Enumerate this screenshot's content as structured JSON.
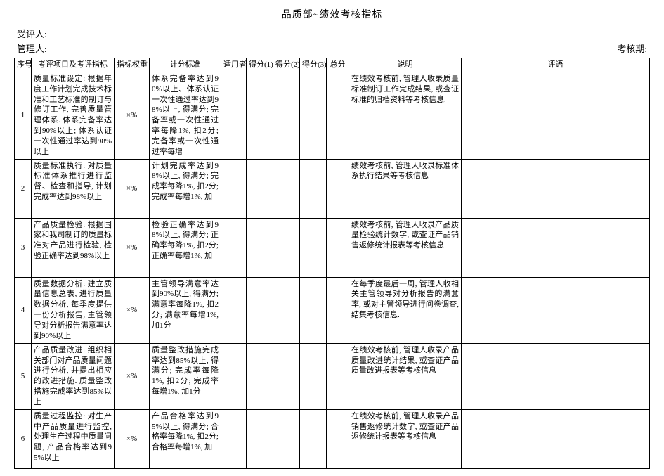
{
  "title": "品质部~绩效考核指标",
  "labels": {
    "reviewee": "受评人:",
    "manager": "管理人:",
    "period": "考核期:"
  },
  "columns": {
    "seq": "序号",
    "item": "考评项目及考评指标",
    "weight": "指标权重",
    "standard": "计分标准",
    "applicable": "适用者",
    "score1": "得分(1)",
    "score2": "得分(2)",
    "score3": "得分(3)",
    "total": "总分",
    "desc": "说明",
    "comment": "评语"
  },
  "weight_placeholder": "×%",
  "rows": [
    {
      "seq": "1",
      "item": "质量标准设定: 根据年度工作计划完成技术标准和工艺标准的制订与修订工作, 完善质量管理体系. 体系完备率达到90%以上; 体系认证一次性通过率达到98%以上",
      "standard": "体系完备率达到90%以上、体系认证一次性通过率达到98%以上, 得满分; 完备率或一次性通过率每降1%, 扣2分; 完备率或一次性通过率每增",
      "desc": "在绩效考核前, 管理人收录质量标准制订工作完成结果, 或查证标准的归档资料等考核信息."
    },
    {
      "seq": "2",
      "item": "质量标准执行: 对质量标准体系推行进行监督、检查和指导, 计划完成率达到98%以上",
      "standard": "计划完成率达到98%以上, 得满分; 完成率每降1%, 扣2分; 完成率每增1%, 加",
      "desc": "绩效考核前, 管理人收录标准体系执行结果等考核信息"
    },
    {
      "seq": "3",
      "item": "产品质量检验: 根据国家和我司制订的质量标准对产品进行检验, 检验正确率达到98%以上",
      "standard": "检验正确率达到98%以上, 得满分; 正确率每降1%, 扣2分; 正确率每增1%, 加",
      "desc": "绩效考核前, 管理人收录产品质量检验统计数字, 或查证产品销售返修统计报表等考核信息"
    },
    {
      "seq": "4",
      "item": "质量数据分析: 建立质量信息总表, 进行质量数据分析, 每季度提供一份分析报告, 主管领导对分析报告满意率达到90%以上",
      "standard": "主管领导满意率达到90%以上, 得满分; 满意率每降1%, 扣2分; 满意率每增1%, 加1分",
      "desc": "在每季度最后一周, 管理人收相关主管领导对分析报告的满意率, 或对主管领导进行问卷调查, 结集考核信息."
    },
    {
      "seq": "5",
      "item": "产品质量改进: 组织相关部门对产品质量问题进行分析, 并提出相应的改进措施. 质量整改措施完成率达到85%以上",
      "standard": "质量整改措施完成率达到85%以上, 得满分; 完成率每降1%, 扣2分; 完成率每增1%, 加1分",
      "desc": "在绩效考核前, 管理人收录产品质量改进统计结果, 或查证产品质量改进报表等考核信息"
    },
    {
      "seq": "6",
      "item": "质量过程监控: 对生产中产品质量进行监控, 处理生产过程中质量问题, 产品合格率达到95%以上",
      "standard": "产品合格率达到95%以上, 得满分; 合格率每降1%, 扣2分; 合格率每增1%, 加",
      "desc": "在绩效考核前, 管理人收录产品销售返修统计数字, 或查证产品返修统计报表等考核信息"
    }
  ]
}
